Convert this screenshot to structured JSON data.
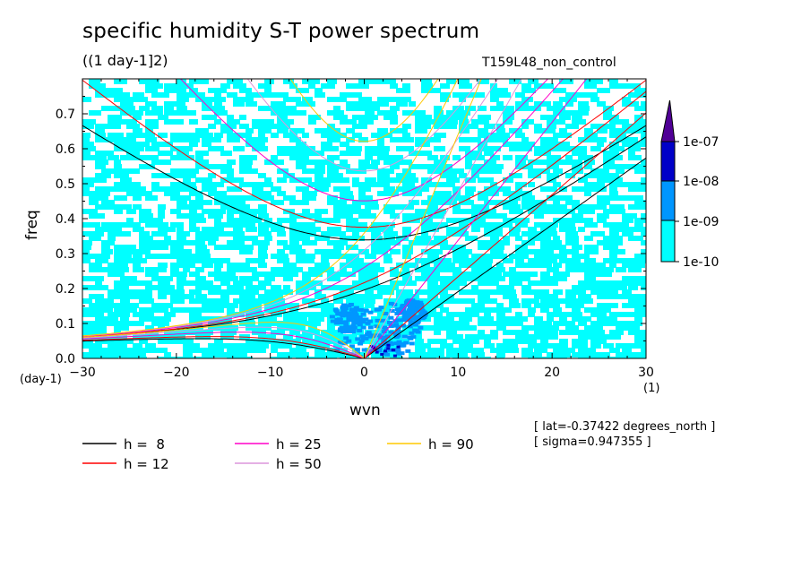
{
  "chart_data": {
    "type": "heatmap",
    "title": "specific humidity S-T power spectrum",
    "subtitle": "((1 day-1]2)",
    "run_label": "T159L48_non_control",
    "xlabel": "wvn",
    "ylabel": "freq",
    "x_unit": "(1)",
    "y_unit": "(day-1)",
    "xlim": [
      -30,
      30
    ],
    "ylim": [
      0,
      0.8
    ],
    "x_ticks": [
      "-30",
      "-20",
      "-10",
      "0",
      "10",
      "20",
      "30"
    ],
    "y_ticks": [
      "0.0",
      "0.1",
      "0.2",
      "0.3",
      "0.4",
      "0.5",
      "0.6",
      "0.7"
    ],
    "colorbar": {
      "labels": [
        "1e-10",
        "1e-09",
        "1e-08",
        "1e-07"
      ],
      "colors": [
        "#00ffff",
        "#0096ff",
        "#0000c8",
        "#500096"
      ]
    },
    "dispersion_curves": [
      {
        "name": "h =  8",
        "h": 8,
        "color": "#000000"
      },
      {
        "name": "h = 12",
        "h": 12,
        "color": "#ff0000"
      },
      {
        "name": "h = 25",
        "h": 25,
        "color": "#ff00c8"
      },
      {
        "name": "h = 50",
        "h": 50,
        "color": "#dc96dc"
      },
      {
        "name": "h = 90",
        "h": 90,
        "color": "#ffc800"
      }
    ],
    "annotations": [
      "[ lat=-0.37422 degrees_north ]",
      "[ sigma=0.947355 ]"
    ]
  }
}
